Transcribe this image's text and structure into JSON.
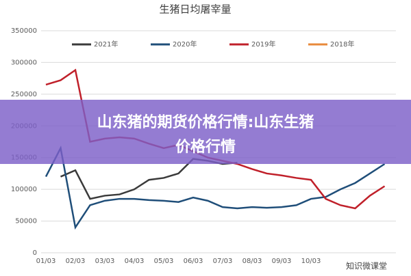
{
  "chart_data": {
    "type": "line",
    "title": "生猪日均屠宰量",
    "categories": [
      "01/03",
      null,
      "02/03",
      null,
      "03/03",
      null,
      "04/03",
      null,
      "05/03",
      null,
      "06/03",
      null,
      "07/03",
      null,
      "08/03",
      null,
      "09/03",
      null,
      "10/03",
      null,
      null,
      null,
      null,
      null
    ],
    "series": [
      {
        "name": "2021年",
        "color": "#3a3a3a",
        "values": [
          null,
          120000,
          130000,
          85000,
          90000,
          92000,
          100000,
          115000,
          118000,
          125000,
          148000,
          145000,
          140000,
          142000,
          null,
          null,
          null,
          null,
          null,
          null,
          null,
          null,
          null,
          null
        ]
      },
      {
        "name": "2020年",
        "color": "#1f4e79",
        "values": [
          120000,
          165000,
          40000,
          75000,
          82000,
          85000,
          85000,
          83000,
          82000,
          80000,
          87000,
          82000,
          72000,
          70000,
          72000,
          71000,
          72000,
          75000,
          85000,
          88000,
          100000,
          110000,
          125000,
          140000
        ]
      },
      {
        "name": "2019年",
        "color": "#c0202a",
        "values": [
          265000,
          272000,
          288000,
          175000,
          180000,
          182000,
          180000,
          172000,
          165000,
          170000,
          160000,
          150000,
          145000,
          140000,
          132000,
          125000,
          122000,
          118000,
          115000,
          85000,
          75000,
          70000,
          90000,
          105000
        ]
      },
      {
        "name": "2018年",
        "color": "#e8893a",
        "values": [
          null,
          null,
          null,
          null,
          null,
          null,
          null,
          null,
          null,
          null,
          null,
          null,
          null,
          null,
          null,
          null,
          null,
          null,
          null,
          null,
          null,
          null,
          null,
          null
        ]
      }
    ],
    "ylim": [
      0,
      350000
    ],
    "yticks": [
      0,
      50000,
      100000,
      150000,
      200000,
      250000,
      300000,
      350000
    ],
    "grid": true
  },
  "overlay": {
    "lines": [
      "山东猪的期货价格行情:山东生猪",
      "价格行情"
    ]
  },
  "watermark": "知识微课堂"
}
